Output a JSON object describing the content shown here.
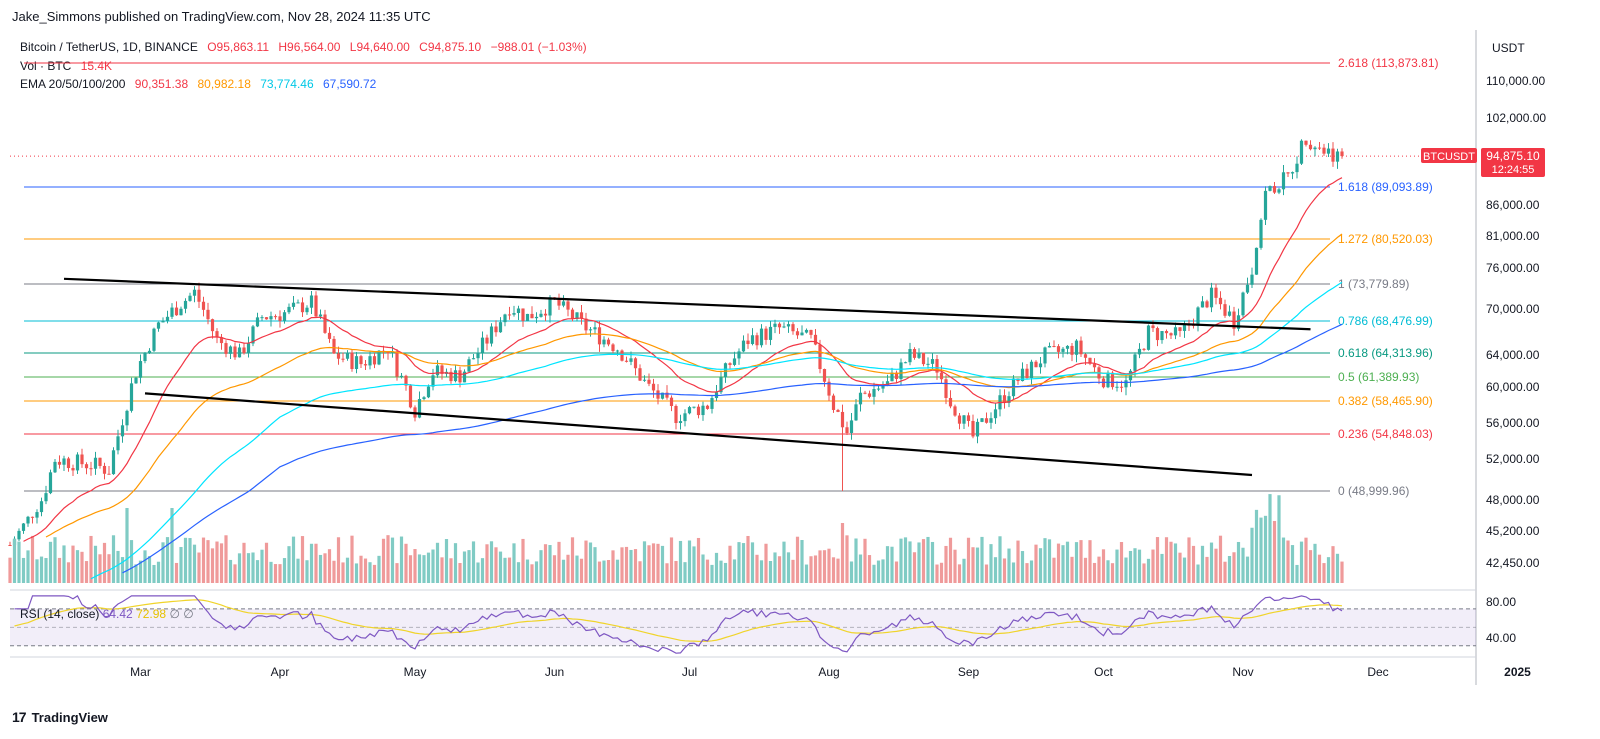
{
  "publisher_line": "Jake_Simmons published on TradingView.com, Nov 28, 2024 11:35 UTC",
  "legend": {
    "symbol": "Bitcoin / TetherUS, 1D, BINANCE",
    "open": "O95,863.11",
    "high": "H96,564.00",
    "low": "L94,640.00",
    "close": "C94,875.10",
    "change": "−988.01 (−1.03%)",
    "vol_label": "Vol · BTC",
    "vol_value": "15.4K",
    "ema_label": "EMA 20/50/100/200",
    "ema20": "90,351.38",
    "ema50": "80,982.18",
    "ema100": "73,774.46",
    "ema200": "67,590.72"
  },
  "rsi_legend": {
    "label": "RSI (14, close)",
    "value": "64.42",
    "ma": "72.98"
  },
  "footer": {
    "brand": "TradingView"
  },
  "price_tag": {
    "symbol": "BTCUSDT",
    "price": "94,875.10",
    "countdown": "12:24:55"
  },
  "colors": {
    "up": "#26a69a",
    "down": "#ef5350",
    "vol_up": "#80cbc4",
    "vol_down": "#ef9a9a",
    "ema20": "#f23645",
    "ema50": "#ff9800",
    "ema100": "#00e5ff",
    "ema200": "#2962ff",
    "rsi": "#7e57c2",
    "rsi_ma": "#f0d42b"
  },
  "chart_data": {
    "type": "candlestick",
    "currency_label": "USDT",
    "y_ticks": [
      "110,000.00",
      "102,000.00",
      "86,000.00",
      "81,000.00",
      "76,000.00",
      "70,000.00",
      "64,000.00",
      "60,000.00",
      "56,000.00",
      "52,000.00",
      "48,000.00",
      "45,200.00",
      "42,450.00"
    ],
    "y_tick_values": [
      110000,
      102000,
      86000,
      81000,
      76000,
      70000,
      64000,
      60000,
      56000,
      52000,
      48000,
      45200,
      42450
    ],
    "x_ticks": [
      "Mar",
      "Apr",
      "May",
      "Jun",
      "Jul",
      "Aug",
      "Sep",
      "Oct",
      "Nov",
      "Dec",
      "2025"
    ],
    "x_tick_days": [
      29,
      60,
      90,
      121,
      151,
      182,
      213,
      243,
      274,
      304,
      335
    ],
    "rsi_ticks": [
      "80.00",
      "40.00"
    ],
    "fib_levels": [
      {
        "label": "2.618 (113,873.81)",
        "value": 113873.81,
        "color": "#f23645"
      },
      {
        "label": "1.618 (89,093.89)",
        "value": 89093.89,
        "color": "#2962ff"
      },
      {
        "label": "1.272 (80,520.03)",
        "value": 80520.03,
        "color": "#ff9800"
      },
      {
        "label": "1 (73,779.89)",
        "value": 73779.89,
        "color": "#787b86"
      },
      {
        "label": "0.786 (68,476.99)",
        "value": 68476.99,
        "color": "#00bcd4"
      },
      {
        "label": "0.618 (64,313.96)",
        "value": 64313.96,
        "color": "#089981"
      },
      {
        "label": "0.5 (61,389.93)",
        "value": 61389.93,
        "color": "#4caf50"
      },
      {
        "label": "0.382 (58,465.90)",
        "value": 58465.9,
        "color": "#ff9800"
      },
      {
        "label": "0.236 (54,848.03)",
        "value": 54848.03,
        "color": "#f23645"
      },
      {
        "label": "0 (48,999.96)",
        "value": 48999.96,
        "color": "#787b86"
      }
    ],
    "trendlines": [
      {
        "name": "upper",
        "from": [
          12,
          74500
        ],
        "to": [
          289,
          67400
        ]
      },
      {
        "name": "lower",
        "from": [
          30,
          59300
        ],
        "to": [
          276,
          50500
        ]
      }
    ],
    "last_price": 94875.1,
    "price_path": [
      [
        0,
        43000
      ],
      [
        7,
        48000
      ],
      [
        10,
        52000
      ],
      [
        18,
        51500
      ],
      [
        22,
        51000
      ],
      [
        28,
        62000
      ],
      [
        33,
        68000
      ],
      [
        41,
        72500
      ],
      [
        46,
        66000
      ],
      [
        51,
        64000
      ],
      [
        56,
        69000
      ],
      [
        61,
        69500
      ],
      [
        67,
        71000
      ],
      [
        72,
        64000
      ],
      [
        78,
        63000
      ],
      [
        84,
        65000
      ],
      [
        90,
        57500
      ],
      [
        94,
        62000
      ],
      [
        100,
        61500
      ],
      [
        106,
        66000
      ],
      [
        111,
        70500
      ],
      [
        115,
        69000
      ],
      [
        121,
        71000
      ],
      [
        127,
        68000
      ],
      [
        135,
        65000
      ],
      [
        142,
        60000
      ],
      [
        148,
        56800
      ],
      [
        155,
        58000
      ],
      [
        160,
        63000
      ],
      [
        164,
        66000
      ],
      [
        171,
        67500
      ],
      [
        178,
        66000
      ],
      [
        183,
        58000
      ],
      [
        186,
        55000
      ],
      [
        189,
        59000
      ],
      [
        195,
        60500
      ],
      [
        200,
        64000
      ],
      [
        206,
        62500
      ],
      [
        209,
        58500
      ],
      [
        214,
        54500
      ],
      [
        218,
        57200
      ],
      [
        224,
        61000
      ],
      [
        230,
        64000
      ],
      [
        237,
        65000
      ],
      [
        243,
        61000
      ],
      [
        248,
        60500
      ],
      [
        253,
        67000
      ],
      [
        260,
        66500
      ],
      [
        267,
        72000
      ],
      [
        272,
        68500
      ],
      [
        276,
        76000
      ],
      [
        279,
        88000
      ],
      [
        284,
        91000
      ],
      [
        288,
        98500
      ],
      [
        292,
        96000
      ],
      [
        296,
        94875
      ]
    ],
    "volume_profile": "daily volume bars, no axis values shown",
    "rsi_range": [
      20,
      85
    ]
  }
}
